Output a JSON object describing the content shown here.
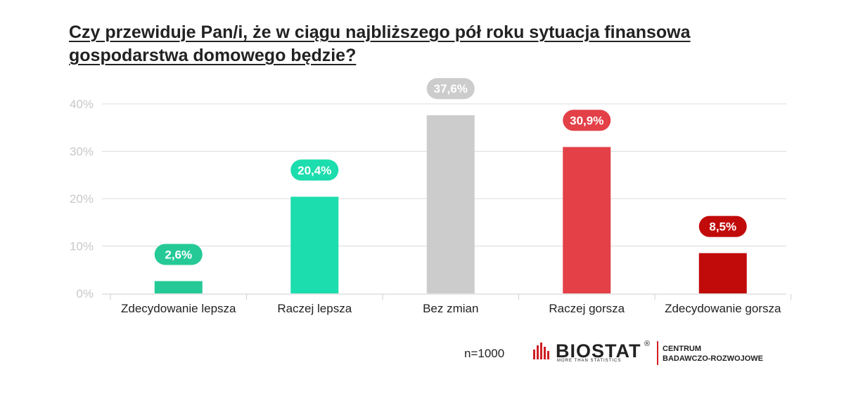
{
  "title_lines": [
    "Czy przewiduje Pan/i, że w ciągu najbliższego pół roku sytuacja finansowa",
    "gospodarstwa domowego będzie?"
  ],
  "footer": {
    "n_label": "n=1000",
    "logo_text": "BIOSTAT",
    "logo_reg": "®",
    "logo_tagline": "MORE THAN STATISTICS",
    "center_line1": "CENTRUM",
    "center_line2": "BADAWCZO-ROZWOJOWE"
  },
  "chart_data": {
    "type": "bar",
    "title": "Czy przewiduje Pan/i, że w ciągu najbliższego pół roku sytuacja finansowa gospodarstwa domowego będzie?",
    "categories": [
      "Zdecydowanie lepsza",
      "Raczej lepsza",
      "Bez zmian",
      "Raczej gorsza",
      "Zdecydowanie gorsza"
    ],
    "values": [
      2.6,
      20.4,
      37.6,
      30.9,
      8.5
    ],
    "value_labels": [
      "2,6%",
      "20,4%",
      "37,6%",
      "30,9%",
      "8,5%"
    ],
    "colors": [
      "#25c996",
      "#1cddad",
      "#cccccc",
      "#e34048",
      "#c10a0a"
    ],
    "ylim": [
      0,
      40
    ],
    "yticks": [
      0,
      10,
      20,
      30,
      40
    ],
    "ytick_labels": [
      "0%",
      "10%",
      "20%",
      "30%",
      "40%"
    ],
    "grid": true,
    "xlabel": "",
    "ylabel": ""
  }
}
